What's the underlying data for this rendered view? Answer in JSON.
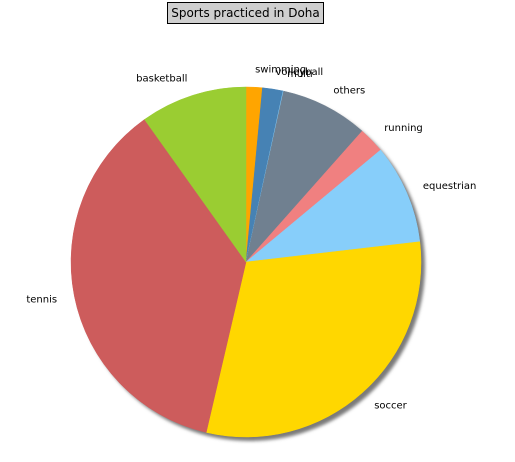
{
  "chart_data": {
    "type": "pie",
    "title": "Sports practiced in Doha",
    "start_angle_deg": 90,
    "direction": "clockwise",
    "shadow": true,
    "slices": [
      {
        "label": "swimming",
        "value": 1.5,
        "color": "#ffa500"
      },
      {
        "label": "volleyball",
        "value": 1.9,
        "color": "#4682b4"
      },
      {
        "label": "multi",
        "value": 0.05,
        "color": "#87cefa"
      },
      {
        "label": "others",
        "value": 8.1,
        "color": "#708090"
      },
      {
        "label": "running",
        "value": 2.4,
        "color": "#f08080"
      },
      {
        "label": "equestrian",
        "value": 9.2,
        "color": "#87cefa"
      },
      {
        "label": "soccer",
        "value": 30.5,
        "color": "#ffd700"
      },
      {
        "label": "tennis",
        "value": 36.5,
        "color": "#cd5c5c"
      },
      {
        "label": "basketball",
        "value": 9.85,
        "color": "#9acd32"
      }
    ]
  }
}
